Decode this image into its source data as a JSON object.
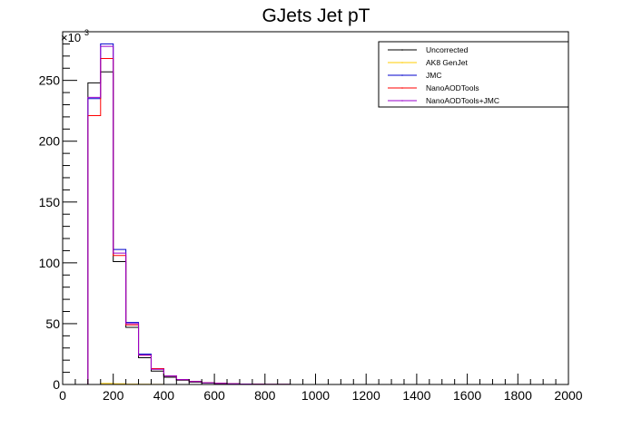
{
  "chart_data": {
    "type": "line",
    "title": "GJets Jet pT",
    "xlabel": "",
    "ylabel": "",
    "xlim": [
      0,
      2000
    ],
    "ylim": [
      0,
      290
    ],
    "y_multiplier_label": "×10",
    "y_multiplier_exp": "3",
    "bin_width": 50,
    "x_ticks": [
      0,
      200,
      400,
      600,
      800,
      1000,
      1200,
      1400,
      1600,
      1800,
      2000
    ],
    "x_tick_labels": [
      "0",
      "200",
      "400",
      "600",
      "800",
      "1000",
      "1200",
      "1400",
      "1600",
      "1800",
      "2000"
    ],
    "y_ticks": [
      0,
      50,
      100,
      150,
      200,
      250
    ],
    "y_tick_labels": [
      "0",
      "50",
      "100",
      "150",
      "200",
      "250"
    ],
    "grid": false,
    "legend_position": "top-right",
    "series": [
      {
        "name": "Uncorrected",
        "color": "#000000",
        "values": [
          0,
          0,
          248,
          257,
          101,
          47,
          22,
          11,
          6,
          3.5,
          2,
          1.2,
          0.8,
          0.5,
          0.3,
          0.2,
          0.1,
          0.1,
          0,
          0,
          0,
          0,
          0,
          0,
          0,
          0,
          0,
          0,
          0,
          0,
          0,
          0,
          0,
          0,
          0,
          0,
          0,
          0,
          0,
          0
        ]
      },
      {
        "name": "AK8 GenJet",
        "color": "#ffcc00",
        "values": [
          0,
          0,
          0,
          0.8,
          0.6,
          0.3,
          0.15,
          0.1,
          0,
          0,
          0,
          0,
          0,
          0,
          0,
          0,
          0,
          0,
          0,
          0,
          0,
          0,
          0,
          0,
          0,
          0,
          0,
          0,
          0,
          0,
          0,
          0,
          0,
          0,
          0,
          0,
          0,
          0,
          0,
          0
        ]
      },
      {
        "name": "JMC",
        "color": "#0000cc",
        "values": [
          0,
          0,
          235,
          280,
          111,
          51,
          25,
          13,
          7,
          4,
          2.5,
          1.5,
          1,
          0.6,
          0.4,
          0.2,
          0.1,
          0.1,
          0,
          0,
          0,
          0,
          0,
          0,
          0,
          0,
          0,
          0,
          0,
          0,
          0,
          0,
          0,
          0,
          0,
          0,
          0,
          0,
          0,
          0
        ]
      },
      {
        "name": "NanoAODTools",
        "color": "#ff0000",
        "values": [
          0,
          0,
          221,
          268,
          106,
          49,
          24,
          13,
          7,
          4,
          2.5,
          1.5,
          1,
          0.6,
          0.4,
          0.2,
          0.1,
          0.1,
          0,
          0,
          0,
          0,
          0,
          0,
          0,
          0,
          0,
          0,
          0,
          0,
          0,
          0,
          0,
          0,
          0,
          0,
          0,
          0,
          0,
          0
        ]
      },
      {
        "name": "NanoAODTools+JMC",
        "color": "#9900cc",
        "values": [
          0,
          0,
          236,
          278,
          108,
          50,
          24,
          12.5,
          7,
          4,
          2.4,
          1.4,
          0.9,
          0.6,
          0.4,
          0.2,
          0.1,
          0.1,
          0,
          0,
          0,
          0,
          0,
          0,
          0,
          0,
          0,
          0,
          0,
          0,
          0,
          0,
          0,
          0,
          0,
          0,
          0,
          0,
          0,
          0
        ]
      }
    ]
  }
}
